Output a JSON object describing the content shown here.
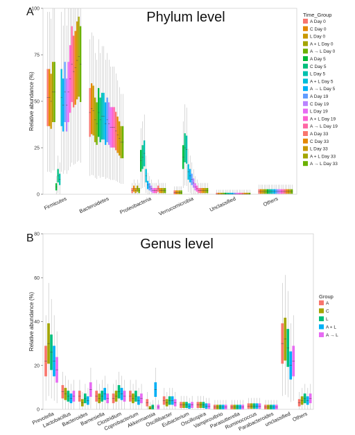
{
  "chart_data": [
    {
      "type": "box",
      "panel_label": "A",
      "title": "Phylum level",
      "xlabel": "",
      "ylabel": "Relative abundance (%)",
      "ylim": [
        0,
        100
      ],
      "yticks": [
        0,
        25,
        50,
        75,
        100
      ],
      "grid": false,
      "legend": {
        "title": "Time_Group",
        "position": "right",
        "entries": [
          "A Day 0",
          "C Day 0",
          "L Day 0",
          "A + L Day 0",
          "A → L Day 0",
          "A Day 5",
          "C Day 5",
          "L Day 5",
          "A + L Day 5",
          "A → L Day 5",
          "A Day 19",
          "C Day 19",
          "L Day 19",
          "A + L Day 19",
          "A → L Day 19",
          "A Day 33",
          "C Day 33",
          "L Day 33",
          "A + L Day 33",
          "A → L Day 33"
        ],
        "colors": [
          "#f8766d",
          "#e58700",
          "#c99800",
          "#a3a500",
          "#6bb100",
          "#00ba38",
          "#00bf7d",
          "#00c0af",
          "#00bcd8",
          "#00b0f6",
          "#619cff",
          "#b983ff",
          "#e76bf3",
          "#fd61d1",
          "#ff67a4",
          "#f8766d",
          "#e58700",
          "#c99800",
          "#a3a500",
          "#6bb100"
        ]
      },
      "categories": [
        "Firmicutes",
        "Bacteroidetes",
        "Proteobacteria",
        "Verrucomicrobia",
        "Unclassified",
        "Others"
      ],
      "medians": [
        [
          52,
          52,
          50,
          55,
          55,
          4,
          10,
          8,
          52,
          48,
          55,
          48,
          55,
          62,
          70,
          66,
          68,
          72,
          74,
          70
        ],
        [
          44,
          46,
          45,
          40,
          38,
          44,
          40,
          42,
          42,
          38,
          40,
          38,
          36,
          36,
          36,
          34,
          32,
          30,
          28,
          28
        ],
        [
          2,
          3,
          2,
          3,
          2,
          18,
          20,
          22,
          10,
          5,
          4,
          3,
          2,
          2,
          2,
          3,
          2,
          2,
          2,
          2
        ],
        [
          1,
          1,
          1,
          1,
          1,
          20,
          25,
          24,
          12,
          10,
          8,
          6,
          4,
          3,
          2,
          2,
          2,
          2,
          2,
          2
        ],
        [
          0,
          0,
          0,
          0,
          0,
          0,
          0,
          0,
          0,
          0,
          0,
          0,
          0,
          0,
          0,
          0,
          0,
          0,
          0,
          0
        ],
        [
          1.5,
          1.5,
          1.5,
          1.5,
          1.5,
          1.5,
          1.5,
          1.5,
          1.5,
          1.5,
          1.5,
          1.5,
          1.5,
          1.5,
          1.5,
          1.5,
          1.5,
          1.5,
          1.5,
          1.5
        ]
      ]
    },
    {
      "type": "box",
      "panel_label": "B",
      "title": "Genus level",
      "xlabel": "",
      "ylabel": "Relative abundance (%)",
      "ylim": [
        0,
        80
      ],
      "yticks": [
        0,
        20,
        40,
        60,
        80
      ],
      "grid": false,
      "legend": {
        "title": "Group",
        "position": "right",
        "entries": [
          "A",
          "C",
          "L",
          "A + L",
          "A → L"
        ],
        "colors": [
          "#f8766d",
          "#a3a500",
          "#00bf7d",
          "#00b0f6",
          "#e76bf3"
        ]
      },
      "categories": [
        "Prevotella",
        "Lactobacillus",
        "Bacteroides",
        "Barnesiella",
        "Clostridium",
        "Coprobacterium",
        "Akkermansia",
        "Oscillibacter",
        "Eubacterium",
        "Oscillospira",
        "Vampirovibrio",
        "Parasutterella",
        "Ruminococcus",
        "Parabacteroides",
        "unclassified",
        "Others"
      ],
      "medians": [
        [
          22,
          30,
          26,
          22,
          18
        ],
        [
          8,
          7,
          6,
          5,
          6
        ],
        [
          6,
          3,
          5,
          4,
          9
        ],
        [
          6,
          5,
          6,
          7,
          5
        ],
        [
          5,
          6,
          8,
          7,
          6
        ],
        [
          6,
          5,
          6,
          4,
          5
        ],
        [
          3,
          0.5,
          1,
          9,
          1
        ],
        [
          4,
          3,
          4,
          4,
          3
        ],
        [
          2,
          2,
          2,
          1.5,
          2
        ],
        [
          2,
          2,
          2,
          1.5,
          1.5
        ],
        [
          1,
          1,
          1,
          1,
          1
        ],
        [
          1,
          1,
          1,
          1,
          1
        ],
        [
          1.5,
          1.5,
          1.5,
          1.5,
          1.5
        ],
        [
          1,
          1,
          1,
          1,
          1
        ],
        [
          30,
          32,
          28,
          20,
          22
        ],
        [
          3,
          4,
          5,
          4,
          5
        ]
      ]
    }
  ]
}
